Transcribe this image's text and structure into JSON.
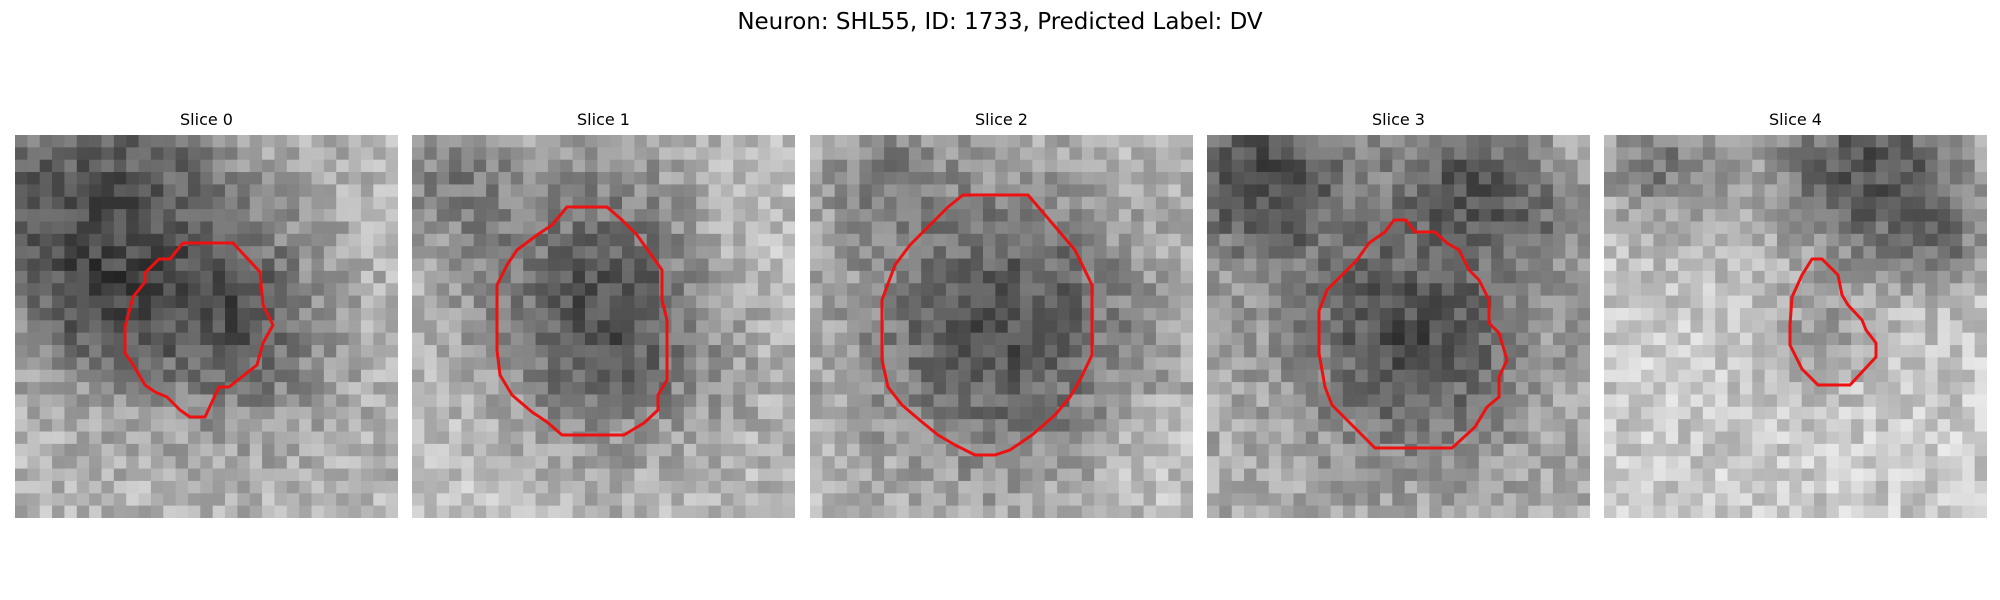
{
  "figure": {
    "title": "Neuron: SHL55, ID: 1733, Predicted Label: DV"
  },
  "panels": [
    {
      "title": "Slice 0"
    },
    {
      "title": "Slice 1"
    },
    {
      "title": "Slice 2"
    },
    {
      "title": "Slice 3"
    },
    {
      "title": "Slice 4"
    }
  ],
  "colors": {
    "contour": "#ee1111",
    "background": "#ffffff"
  },
  "image_type": "grayscale microscopy patch with red segmentation contour"
}
